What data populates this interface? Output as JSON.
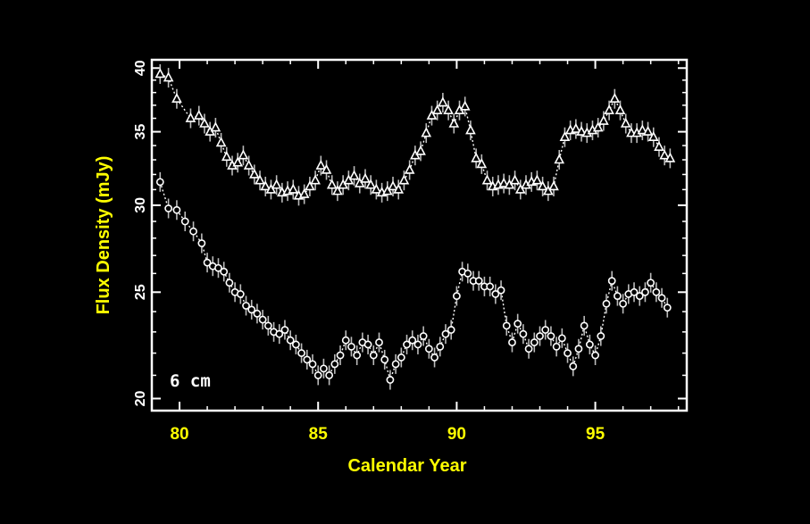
{
  "chart_data": {
    "type": "scatter",
    "xlabel": "Calendar Year",
    "ylabel": "Flux Density (mJy)",
    "annotation": "6 cm",
    "x_ticks": [
      80,
      85,
      90,
      95
    ],
    "y_ticks": [
      20,
      25,
      30,
      35,
      40
    ],
    "xlim": [
      79,
      98.3
    ],
    "ylim": [
      19.5,
      40.7
    ],
    "y_scale": "log",
    "grid": false,
    "colors": {
      "background": "#000000",
      "axes": "#ffffff",
      "labels": "#ffff00",
      "markers": "#ffffff",
      "error_bars": "#bbbbbb"
    },
    "series": [
      {
        "marker": "triangle",
        "x": [
          79.3,
          79.6,
          79.9,
          80.4,
          80.7,
          80.9,
          81.1,
          81.3,
          81.5,
          81.7,
          81.9,
          82.1,
          82.3,
          82.5,
          82.7,
          82.9,
          83.1,
          83.3,
          83.5,
          83.7,
          83.9,
          84.1,
          84.3,
          84.5,
          84.7,
          84.9,
          85.1,
          85.3,
          85.5,
          85.7,
          85.9,
          86.1,
          86.3,
          86.5,
          86.7,
          86.9,
          87.1,
          87.3,
          87.5,
          87.7,
          87.9,
          88.1,
          88.3,
          88.5,
          88.7,
          88.9,
          89.1,
          89.3,
          89.5,
          89.7,
          89.9,
          90.1,
          90.3,
          90.5,
          90.7,
          90.9,
          91.1,
          91.3,
          91.5,
          91.7,
          91.9,
          92.1,
          92.3,
          92.5,
          92.7,
          92.9,
          93.1,
          93.3,
          93.5,
          93.7,
          93.9,
          94.1,
          94.3,
          94.5,
          94.7,
          94.9,
          95.1,
          95.3,
          95.5,
          95.7,
          95.9,
          96.1,
          96.3,
          96.5,
          96.7,
          96.9,
          97.1,
          97.3,
          97.5,
          97.7
        ],
        "y": [
          39.5,
          39.2,
          37.5,
          36.0,
          36.2,
          35.6,
          35.0,
          35.3,
          34.2,
          33.2,
          32.6,
          32.8,
          33.3,
          32.6,
          32.0,
          31.6,
          31.2,
          31.0,
          31.3,
          30.8,
          30.9,
          31.0,
          30.6,
          30.7,
          31.2,
          31.6,
          32.6,
          32.3,
          31.3,
          30.9,
          31.3,
          31.6,
          31.9,
          31.4,
          31.7,
          31.3,
          31.0,
          30.8,
          30.9,
          31.2,
          31.0,
          31.6,
          32.3,
          33.3,
          33.6,
          34.9,
          36.2,
          36.6,
          37.2,
          36.6,
          35.6,
          36.6,
          36.9,
          35.1,
          33.1,
          32.7,
          31.6,
          31.2,
          31.3,
          31.4,
          31.3,
          31.6,
          31.0,
          31.3,
          31.5,
          31.6,
          31.2,
          30.9,
          31.2,
          33.0,
          34.6,
          35.1,
          35.2,
          35.0,
          34.9,
          35.1,
          35.3,
          35.8,
          36.6,
          37.5,
          36.6,
          35.6,
          34.9,
          34.9,
          35.1,
          35.0,
          34.6,
          33.9,
          33.3,
          33.1
        ]
      },
      {
        "marker": "circle",
        "x": [
          79.3,
          79.6,
          79.9,
          80.2,
          80.5,
          80.8,
          81.0,
          81.2,
          81.4,
          81.6,
          81.8,
          82.0,
          82.2,
          82.4,
          82.6,
          82.8,
          83.0,
          83.2,
          83.4,
          83.6,
          83.8,
          84.0,
          84.2,
          84.4,
          84.6,
          84.8,
          85.0,
          85.2,
          85.4,
          85.6,
          85.8,
          86.0,
          86.2,
          86.4,
          86.6,
          86.8,
          87.0,
          87.2,
          87.4,
          87.6,
          87.8,
          88.0,
          88.2,
          88.4,
          88.6,
          88.8,
          89.0,
          89.2,
          89.4,
          89.6,
          89.8,
          90.0,
          90.2,
          90.4,
          90.6,
          90.8,
          91.0,
          91.2,
          91.4,
          91.6,
          91.8,
          92.0,
          92.2,
          92.4,
          92.6,
          92.8,
          93.0,
          93.2,
          93.4,
          93.6,
          93.8,
          94.0,
          94.2,
          94.4,
          94.6,
          94.8,
          95.0,
          95.2,
          95.4,
          95.6,
          95.8,
          96.0,
          96.2,
          96.4,
          96.6,
          96.8,
          97.0,
          97.2,
          97.4,
          97.6
        ],
        "y": [
          31.5,
          29.8,
          29.7,
          29.0,
          28.4,
          27.7,
          26.6,
          26.4,
          26.3,
          26.1,
          25.5,
          25.0,
          24.9,
          24.3,
          24.1,
          23.9,
          23.6,
          23.3,
          23.0,
          22.9,
          23.1,
          22.6,
          22.4,
          22.0,
          21.7,
          21.5,
          21.0,
          21.3,
          21.0,
          21.5,
          21.9,
          22.6,
          22.3,
          21.9,
          22.5,
          22.4,
          21.9,
          22.5,
          21.7,
          20.8,
          21.5,
          21.8,
          22.4,
          22.6,
          22.4,
          22.8,
          22.2,
          21.8,
          22.3,
          22.9,
          23.1,
          24.8,
          26.1,
          26.0,
          25.6,
          25.6,
          25.3,
          25.3,
          24.9,
          25.1,
          23.3,
          22.5,
          23.4,
          22.9,
          22.2,
          22.5,
          22.8,
          23.1,
          22.8,
          22.3,
          22.7,
          22.0,
          21.4,
          22.2,
          23.3,
          22.4,
          21.9,
          22.8,
          24.4,
          25.6,
          24.8,
          24.4,
          24.9,
          25.0,
          24.8,
          25.0,
          25.5,
          25.0,
          24.7,
          24.2
        ]
      }
    ]
  }
}
